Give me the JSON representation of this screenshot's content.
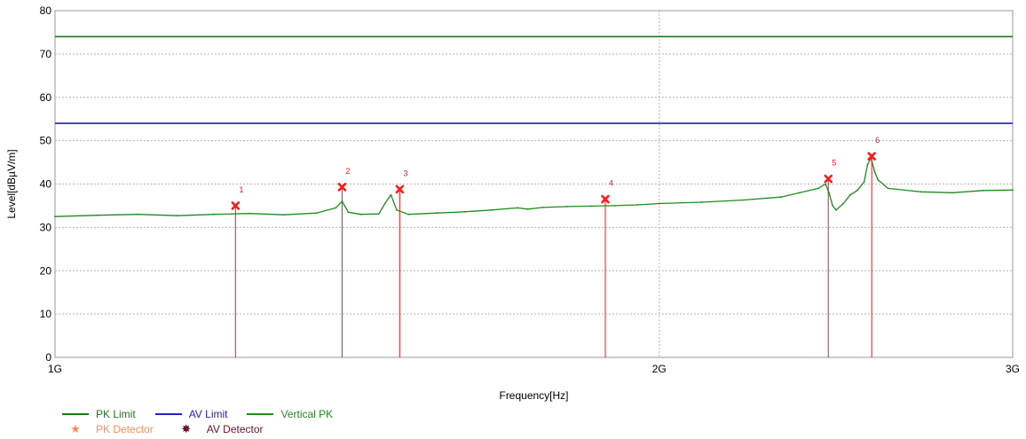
{
  "chart_data": {
    "type": "line",
    "xlabel": "Frequency[Hz]",
    "ylabel": "Level[dBµV/m]",
    "xlim": [
      1000000000,
      3000000000
    ],
    "ylim": [
      0,
      80
    ],
    "x_ticks": [
      {
        "value": 1000000000,
        "label": "1G"
      },
      {
        "value": 2000000000,
        "label": "2G"
      },
      {
        "value": 3000000000,
        "label": "3G"
      }
    ],
    "y_ticks": [
      0,
      10,
      20,
      30,
      40,
      50,
      60,
      70,
      80
    ],
    "x_scale": "log",
    "grid": true,
    "legend_position": "bottom-left",
    "limits": [
      {
        "name": "PK Limit",
        "value": 74,
        "color": "#1a7a1a"
      },
      {
        "name": "AV Limit",
        "value": 54,
        "color": "#1f1fcc"
      }
    ],
    "series": [
      {
        "name": "Vertical PK",
        "color": "#1e8c1e",
        "x": [
          1000000000,
          1050000000,
          1100000000,
          1150000000,
          1200000000,
          1250000000,
          1300000000,
          1350000000,
          1380000000,
          1390000000,
          1400000000,
          1420000000,
          1450000000,
          1460000000,
          1470000000,
          1480000000,
          1500000000,
          1550000000,
          1600000000,
          1650000000,
          1700000000,
          1720000000,
          1750000000,
          1800000000,
          1850000000,
          1900000000,
          1950000000,
          2000000000,
          2100000000,
          2200000000,
          2300000000,
          2350000000,
          2400000000,
          2420000000,
          2430000000,
          2440000000,
          2450000000,
          2470000000,
          2490000000,
          2510000000,
          2530000000,
          2540000000,
          2550000000,
          2560000000,
          2570000000,
          2600000000,
          2700000000,
          2800000000,
          2900000000,
          3000000000
        ],
        "values": [
          32.5,
          32.8,
          33.0,
          32.7,
          33.0,
          33.2,
          32.9,
          33.3,
          34.5,
          36.0,
          33.5,
          33.0,
          33.1,
          35.5,
          37.5,
          34.0,
          33.0,
          33.3,
          33.6,
          34.0,
          34.5,
          34.2,
          34.6,
          34.8,
          34.9,
          35.0,
          35.2,
          35.5,
          35.8,
          36.3,
          37.0,
          38.0,
          39.0,
          40.0,
          38.0,
          35.0,
          34.0,
          35.5,
          37.5,
          38.5,
          40.5,
          44.5,
          46.0,
          43.0,
          41.0,
          39.0,
          38.2,
          38.0,
          38.5,
          38.6
        ]
      }
    ],
    "markers": [
      {
        "label": "1",
        "x": 1230000000,
        "y": 35.0
      },
      {
        "label": "2",
        "x": 1390000000,
        "y": 39.3
      },
      {
        "label": "3",
        "x": 1485000000,
        "y": 38.8
      },
      {
        "label": "4",
        "x": 1880000000,
        "y": 36.5
      },
      {
        "label": "5",
        "x": 2428000000,
        "y": 41.2
      },
      {
        "label": "6",
        "x": 2552000000,
        "y": 46.4
      }
    ],
    "legend_entries": [
      {
        "name": "PK Limit",
        "kind": "line",
        "color": "#1a7a1a"
      },
      {
        "name": "AV Limit",
        "kind": "line",
        "color": "#1f1fcc"
      },
      {
        "name": "Vertical PK",
        "kind": "line",
        "color": "#1e8c1e"
      },
      {
        "name": "PK Detector",
        "kind": "marker",
        "color": "#ff8c55",
        "symbol": "★"
      },
      {
        "name": "AV Detector",
        "kind": "marker",
        "color": "#6e1030",
        "symbol": "✸"
      }
    ]
  }
}
